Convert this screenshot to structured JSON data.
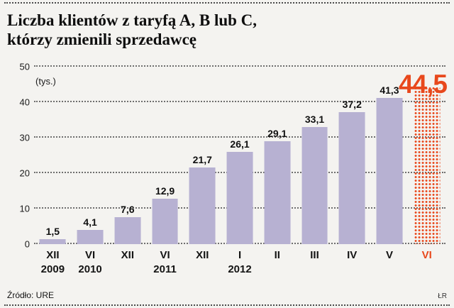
{
  "title": {
    "line1": "Liczba klientów z taryfą A, B lub C,",
    "line2": "którzy zmienili sprzedawcę"
  },
  "chart_data": {
    "type": "bar",
    "title": "Liczba klientów z taryfą A, B lub C, którzy zmienili sprzedawcę",
    "unit_label": "(tys.)",
    "ylim": [
      0,
      50
    ],
    "yticks": [
      0,
      10,
      20,
      30,
      40,
      50
    ],
    "grid": true,
    "legend": false,
    "x_months": [
      "XII",
      "VI",
      "XII",
      "VI",
      "XII",
      "I",
      "II",
      "III",
      "IV",
      "V",
      "VI"
    ],
    "x_years": [
      "2009",
      "2010",
      "",
      "2011",
      "",
      "2012",
      "",
      "",
      "",
      "",
      ""
    ],
    "categories": [
      "XII 2009",
      "VI 2010",
      "XII 2010",
      "VI 2011",
      "XII 2011",
      "I 2012",
      "II 2012",
      "III 2012",
      "IV 2012",
      "V 2012",
      "VI 2012"
    ],
    "values": [
      1.5,
      4.1,
      7.6,
      12.9,
      21.7,
      26.1,
      29.1,
      33.1,
      37.2,
      41.3,
      44.5
    ],
    "value_labels": [
      "1,5",
      "4,1",
      "7,6",
      "12,9",
      "21,7",
      "26,1",
      "29,1",
      "33,1",
      "37,2",
      "41,3",
      "44,5"
    ],
    "highlight_index": 10,
    "bar_color": "#b7b1d2",
    "highlight_color": "#e8481c"
  },
  "footer": {
    "source": "Źródło: URE",
    "credit": "ŁR"
  }
}
